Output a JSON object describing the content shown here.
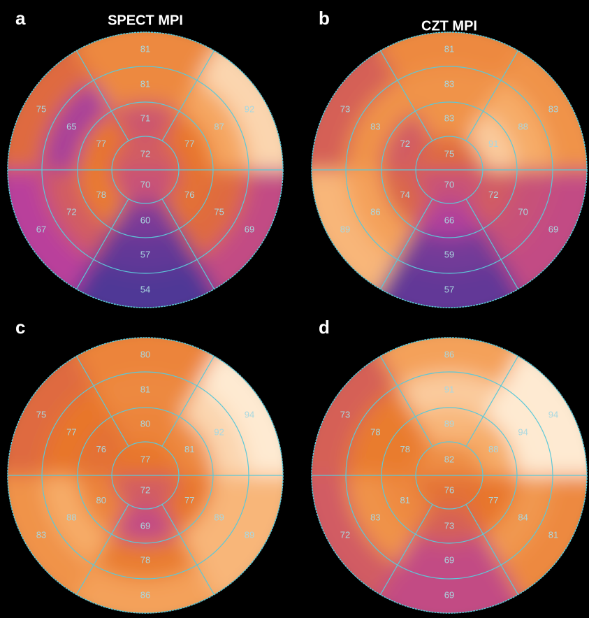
{
  "panels": [
    {
      "label": "a",
      "title": "SPECT MPI",
      "basal": [
        81,
        75,
        67,
        54,
        69,
        92
      ],
      "mid": [
        81,
        65,
        72,
        57,
        75,
        87
      ],
      "distal": [
        71,
        77,
        78,
        60,
        76,
        77
      ],
      "apex": [
        72,
        70
      ]
    },
    {
      "label": "b",
      "title": "CZT MPI",
      "basal": [
        81,
        73,
        89,
        57,
        69,
        83
      ],
      "mid": [
        83,
        83,
        86,
        59,
        70,
        88
      ],
      "distal": [
        83,
        72,
        74,
        66,
        72,
        91
      ],
      "apex": [
        75,
        70
      ]
    },
    {
      "label": "c",
      "basal": [
        80,
        75,
        83,
        86,
        89,
        94
      ],
      "mid": [
        81,
        77,
        88,
        78,
        89,
        92
      ],
      "distal": [
        80,
        76,
        80,
        69,
        77,
        81
      ],
      "apex": [
        77,
        72
      ]
    },
    {
      "label": "d",
      "basal": [
        86,
        73,
        72,
        69,
        81,
        94
      ],
      "mid": [
        91,
        78,
        83,
        69,
        84,
        94
      ],
      "distal": [
        89,
        78,
        81,
        73,
        77,
        88
      ],
      "apex": [
        82,
        76
      ]
    }
  ]
}
